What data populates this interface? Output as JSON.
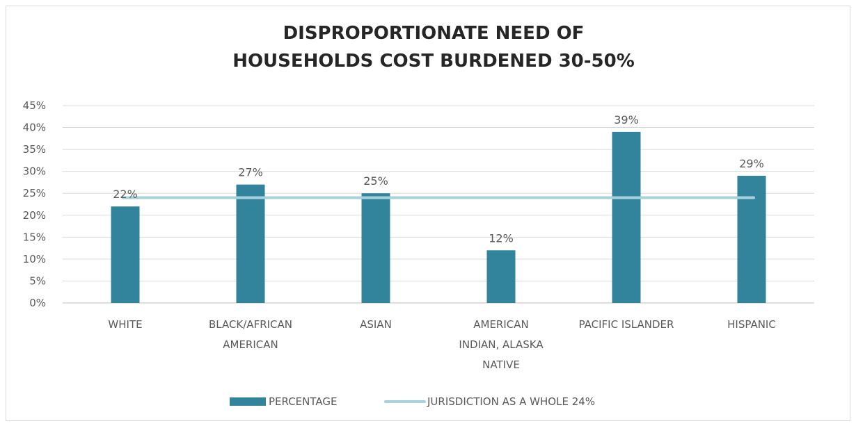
{
  "chart_data": {
    "type": "bar",
    "title_lines": [
      "DISPROPORTIONATE NEED OF",
      "HOUSEHOLDS COST BURDENED 30-50%"
    ],
    "categories": [
      [
        "WHITE"
      ],
      [
        "BLACK/AFRICAN",
        "AMERICAN"
      ],
      [
        "ASIAN"
      ],
      [
        "AMERICAN",
        "INDIAN, ALASKA",
        "NATIVE"
      ],
      [
        "PACIFIC ISLANDER"
      ],
      [
        "HISPANIC"
      ]
    ],
    "series": [
      {
        "name": "PERCENTAGE",
        "kind": "bar",
        "values": [
          22,
          27,
          25,
          12,
          39,
          29
        ],
        "data_labels": [
          "22%",
          "27%",
          "25%",
          "12%",
          "39%",
          "29%"
        ],
        "color": "#31849b"
      },
      {
        "name": "JURISDICTION AS A WHOLE 24%",
        "kind": "line",
        "value": 24,
        "color": "#a8d1de"
      }
    ],
    "ylim": [
      0,
      45
    ],
    "y_ticks": [
      0,
      5,
      10,
      15,
      20,
      25,
      30,
      35,
      40,
      45
    ],
    "y_tick_labels": [
      "0%",
      "5%",
      "10%",
      "15%",
      "20%",
      "25%",
      "30%",
      "35%",
      "40%",
      "45%"
    ],
    "grid": true,
    "legend_position": "bottom",
    "colors": {
      "grid": "#d9d9d9",
      "axis": "#bfbfbf",
      "text": "#595959",
      "title": "#262626"
    }
  }
}
